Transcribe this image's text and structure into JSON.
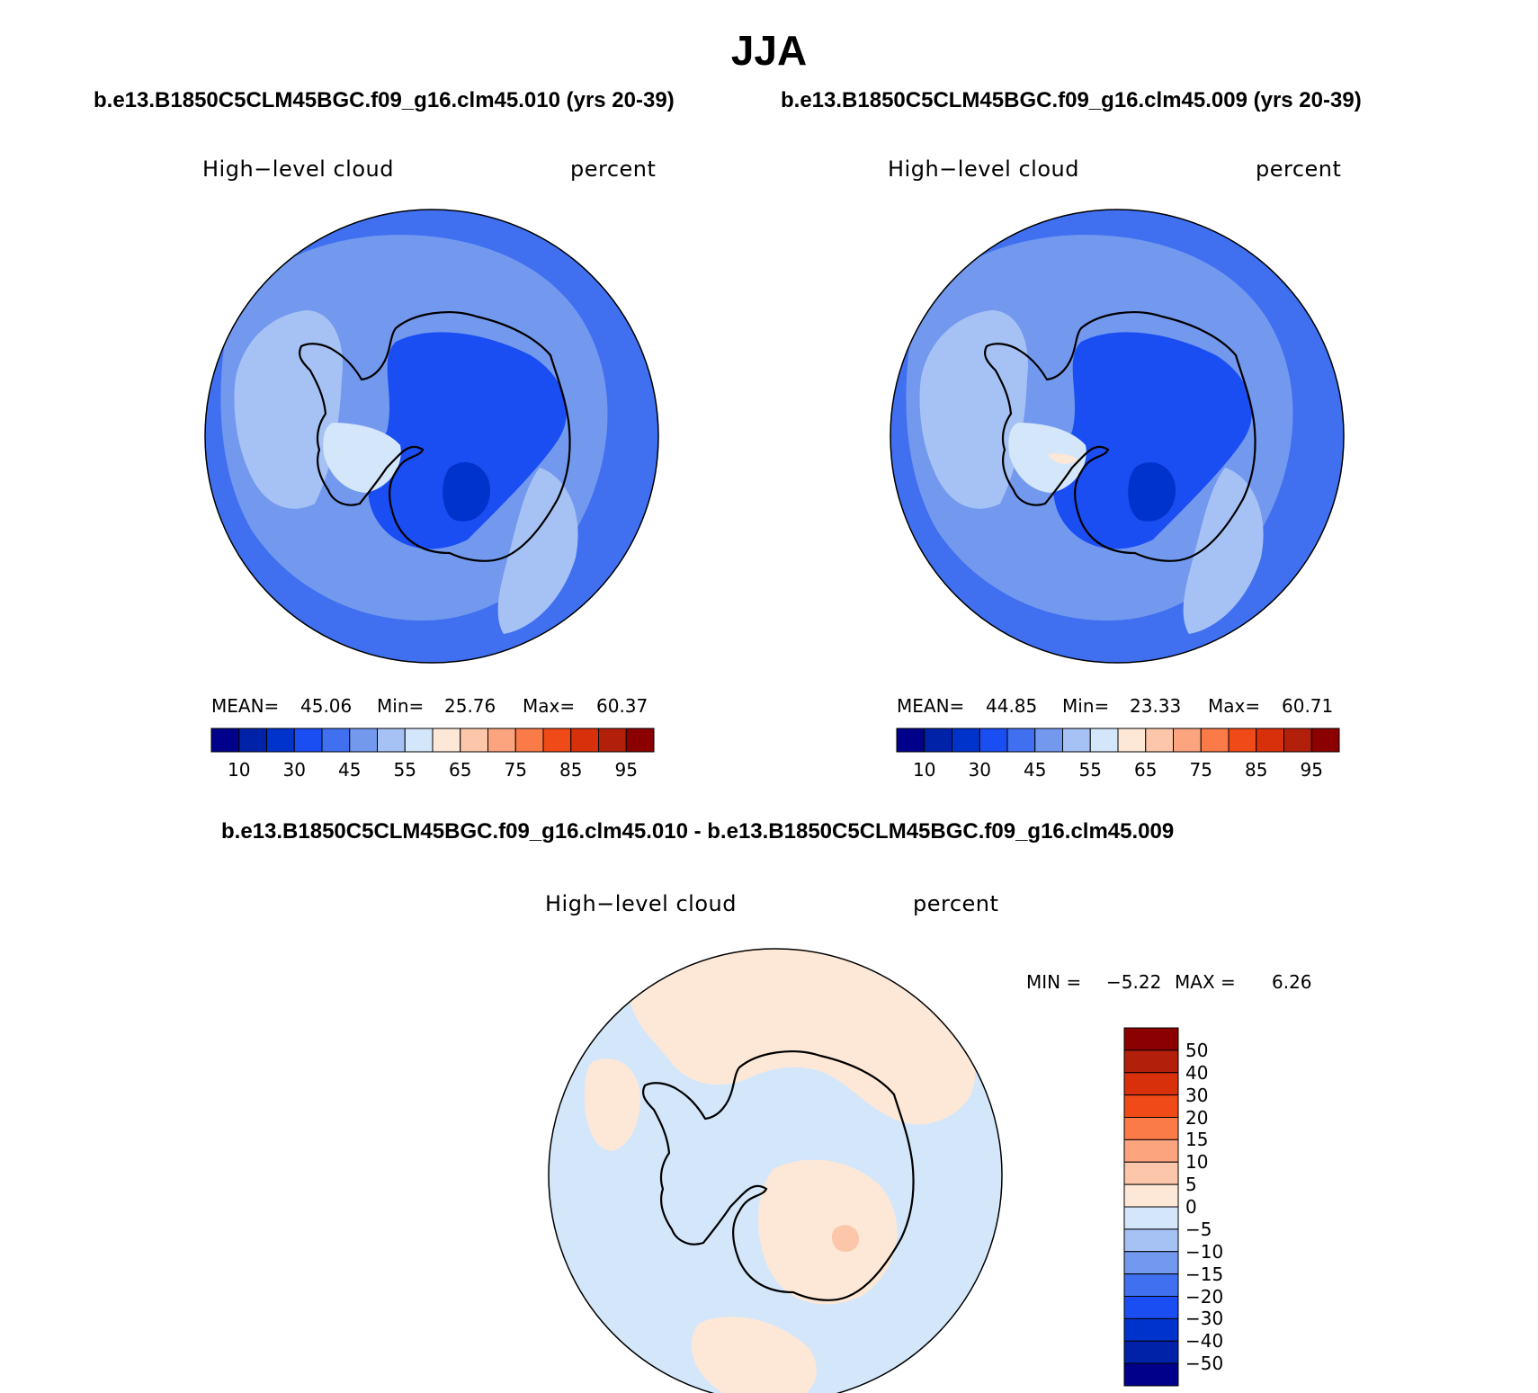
{
  "title": "JJA",
  "panels": [
    {
      "id": "case",
      "header": "b.e13.B1850C5CLM45BGC.f09_g16.clm45.010 (yrs 20-39)",
      "variable": "High−level cloud",
      "units": "percent",
      "stats": {
        "mean_label": "MEAN=",
        "mean": "45.06",
        "min_label": "Min=",
        "min": "25.76",
        "max_label": "Max=",
        "max": "60.37"
      }
    },
    {
      "id": "control",
      "header": "b.e13.B1850C5CLM45BGC.f09_g16.clm45.009 (yrs 20-39)",
      "variable": "High−level cloud",
      "units": "percent",
      "stats": {
        "mean_label": "MEAN=",
        "mean": "44.85",
        "min_label": "Min=",
        "min": "23.33",
        "max_label": "Max=",
        "max": "60.71"
      }
    },
    {
      "id": "difference",
      "header": "b.e13.B1850C5CLM45BGC.f09_g16.clm45.010 - b.e13.B1850C5CLM45BGC.f09_g16.clm45.009",
      "variable": "High−level cloud",
      "units": "percent",
      "stats": {
        "min_label": "MIN =",
        "min": "−5.22",
        "max_label": "MAX =",
        "max": "6.26"
      }
    }
  ],
  "colorbars": {
    "absolute": {
      "colors": [
        "#00008b",
        "#0022a8",
        "#0033cc",
        "#1a4df2",
        "#4070f0",
        "#7399ef",
        "#a6c2f5",
        "#d4e6fa",
        "#fde8d8",
        "#fcc6aa",
        "#fca47e",
        "#fa7a48",
        "#f04a18",
        "#d8300a",
        "#b2200c",
        "#8b0000"
      ],
      "tick_labels": [
        "10",
        "30",
        "45",
        "55",
        "65",
        "75",
        "85",
        "95"
      ]
    },
    "difference": {
      "colors": [
        "#00008b",
        "#0022a8",
        "#0033cc",
        "#1a4df2",
        "#4070f0",
        "#7399ef",
        "#a6c2f5",
        "#d4e6fa",
        "#fde8d8",
        "#fcc6aa",
        "#fca47e",
        "#fa7a48",
        "#f04a18",
        "#d8300a",
        "#b2200c",
        "#8b0000"
      ],
      "tick_labels": [
        "50",
        "40",
        "30",
        "20",
        "15",
        "10",
        "5",
        "0",
        "−5",
        "−10",
        "−15",
        "−20",
        "−30",
        "−40",
        "−50"
      ]
    }
  },
  "map_colors": {
    "ocean_outer": "#4070f0",
    "ocean_mid": "#7399ef",
    "ocean_light": "#a6c2f5",
    "plateau": "#1a4df2",
    "peninsula_light": "#d4e6fa",
    "diff_background": "#d4e6fa",
    "diff_positive": "#fde8d8",
    "diff_spot": "#fcc6aa",
    "coastline": "#000000"
  }
}
